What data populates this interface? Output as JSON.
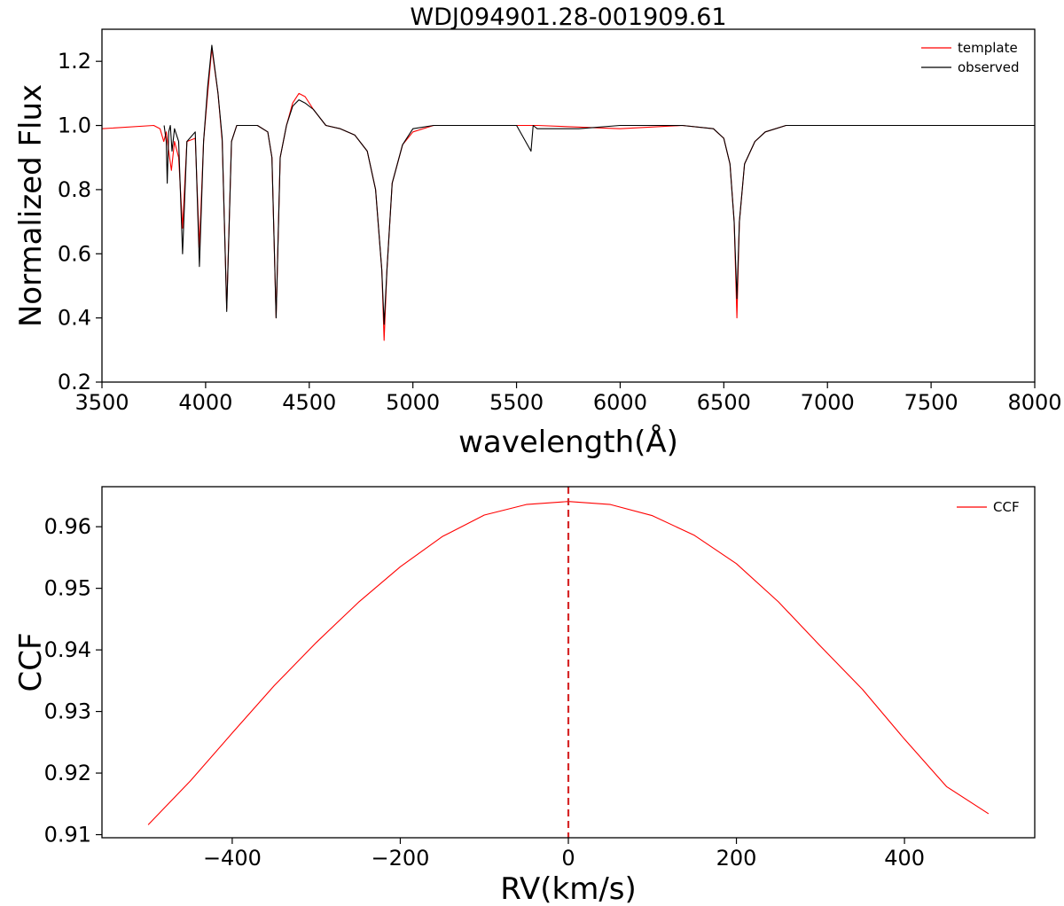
{
  "figure": {
    "top_title": "WDJ094901.28-001909.61"
  },
  "chart_data": [
    {
      "type": "line",
      "title": "WDJ094901.28-001909.61",
      "xlabel": "wavelength(Å)",
      "ylabel": "Normalized Flux",
      "xlim": [
        3500,
        8000
      ],
      "ylim": [
        0.2,
        1.3
      ],
      "xticks": [
        "3500",
        "4000",
        "4500",
        "5000",
        "5500",
        "6000",
        "6500",
        "7000",
        "7500",
        "8000"
      ],
      "yticks": [
        "0.2",
        "0.4",
        "0.6",
        "0.8",
        "1.0",
        "1.2"
      ],
      "grid": false,
      "legend_position": "top-right",
      "series": [
        {
          "name": "template",
          "color": "#ff0000",
          "x": [
            3500,
            3750,
            3780,
            3798,
            3810,
            3820,
            3835,
            3850,
            3870,
            3889,
            3910,
            3950,
            3970,
            3990,
            4010,
            4030,
            4060,
            4080,
            4102,
            4125,
            4150,
            4200,
            4250,
            4300,
            4320,
            4340,
            4360,
            4390,
            4420,
            4450,
            4480,
            4520,
            4580,
            4650,
            4720,
            4780,
            4820,
            4850,
            4861,
            4875,
            4900,
            4950,
            5000,
            5100,
            5300,
            5600,
            6000,
            6300,
            6450,
            6500,
            6530,
            6550,
            6563,
            6575,
            6600,
            6650,
            6700,
            6800,
            7000,
            7500,
            8000
          ],
          "y": [
            0.99,
            1.0,
            0.99,
            0.95,
            0.98,
            0.93,
            0.86,
            0.95,
            0.9,
            0.68,
            0.95,
            0.96,
            0.62,
            0.95,
            1.1,
            1.24,
            1.1,
            0.95,
            0.43,
            0.95,
            1.0,
            1.0,
            1.0,
            0.98,
            0.9,
            0.4,
            0.9,
            1.0,
            1.07,
            1.1,
            1.09,
            1.05,
            1.0,
            0.99,
            0.97,
            0.92,
            0.8,
            0.55,
            0.33,
            0.55,
            0.82,
            0.94,
            0.98,
            1.0,
            1.0,
            1.0,
            0.99,
            1.0,
            0.99,
            0.96,
            0.88,
            0.7,
            0.4,
            0.7,
            0.88,
            0.95,
            0.98,
            1.0,
            1.0,
            1.0,
            1.0
          ]
        },
        {
          "name": "observed",
          "color": "#000000",
          "x": [
            3800,
            3810,
            3815,
            3822,
            3830,
            3838,
            3850,
            3870,
            3889,
            3910,
            3950,
            3970,
            3990,
            4010,
            4030,
            4060,
            4080,
            4102,
            4125,
            4150,
            4200,
            4250,
            4300,
            4320,
            4340,
            4360,
            4390,
            4420,
            4450,
            4480,
            4520,
            4580,
            4650,
            4720,
            4780,
            4820,
            4850,
            4861,
            4875,
            4900,
            4950,
            5000,
            5100,
            5300,
            5500,
            5570,
            5580,
            5600,
            5800,
            6000,
            6300,
            6450,
            6500,
            6530,
            6550,
            6563,
            6575,
            6600,
            6650,
            6700,
            6800,
            7000,
            7500,
            8000
          ],
          "y": [
            1.0,
            0.95,
            0.82,
            0.98,
            1.0,
            0.92,
            0.99,
            0.95,
            0.6,
            0.95,
            0.98,
            0.56,
            0.95,
            1.12,
            1.25,
            1.1,
            0.96,
            0.42,
            0.95,
            1.0,
            1.0,
            1.0,
            0.98,
            0.9,
            0.4,
            0.9,
            1.0,
            1.06,
            1.08,
            1.07,
            1.05,
            1.0,
            0.99,
            0.97,
            0.92,
            0.8,
            0.55,
            0.38,
            0.55,
            0.82,
            0.94,
            0.99,
            1.0,
            1.0,
            1.0,
            0.92,
            1.0,
            0.99,
            0.99,
            1.0,
            1.0,
            0.99,
            0.96,
            0.88,
            0.7,
            0.46,
            0.7,
            0.88,
            0.95,
            0.98,
            1.0,
            1.0,
            1.0,
            1.0
          ]
        }
      ]
    },
    {
      "type": "line",
      "title": "",
      "xlabel": "RV(km/s)",
      "ylabel": "CCF",
      "xlim": [
        -555,
        555
      ],
      "ylim": [
        0.9095,
        0.9665
      ],
      "xticks": [
        "−400",
        "−200",
        "0",
        "200",
        "400"
      ],
      "yticks": [
        "0.91",
        "0.92",
        "0.93",
        "0.94",
        "0.95",
        "0.96"
      ],
      "grid": false,
      "legend_position": "top-right",
      "vline": {
        "x": 0,
        "color": "#d62728",
        "style": "dashed"
      },
      "series": [
        {
          "name": "CCF",
          "color": "#ff0000",
          "x": [
            -500,
            -450,
            -400,
            -350,
            -300,
            -250,
            -200,
            -150,
            -100,
            -50,
            0,
            50,
            100,
            150,
            200,
            250,
            300,
            350,
            400,
            450,
            500
          ],
          "y": [
            0.9116,
            0.9187,
            0.9265,
            0.9342,
            0.9412,
            0.9477,
            0.9535,
            0.9584,
            0.9619,
            0.9636,
            0.9641,
            0.9636,
            0.9618,
            0.9586,
            0.954,
            0.9478,
            0.9406,
            0.9336,
            0.9255,
            0.9178,
            0.9134
          ]
        }
      ]
    }
  ]
}
